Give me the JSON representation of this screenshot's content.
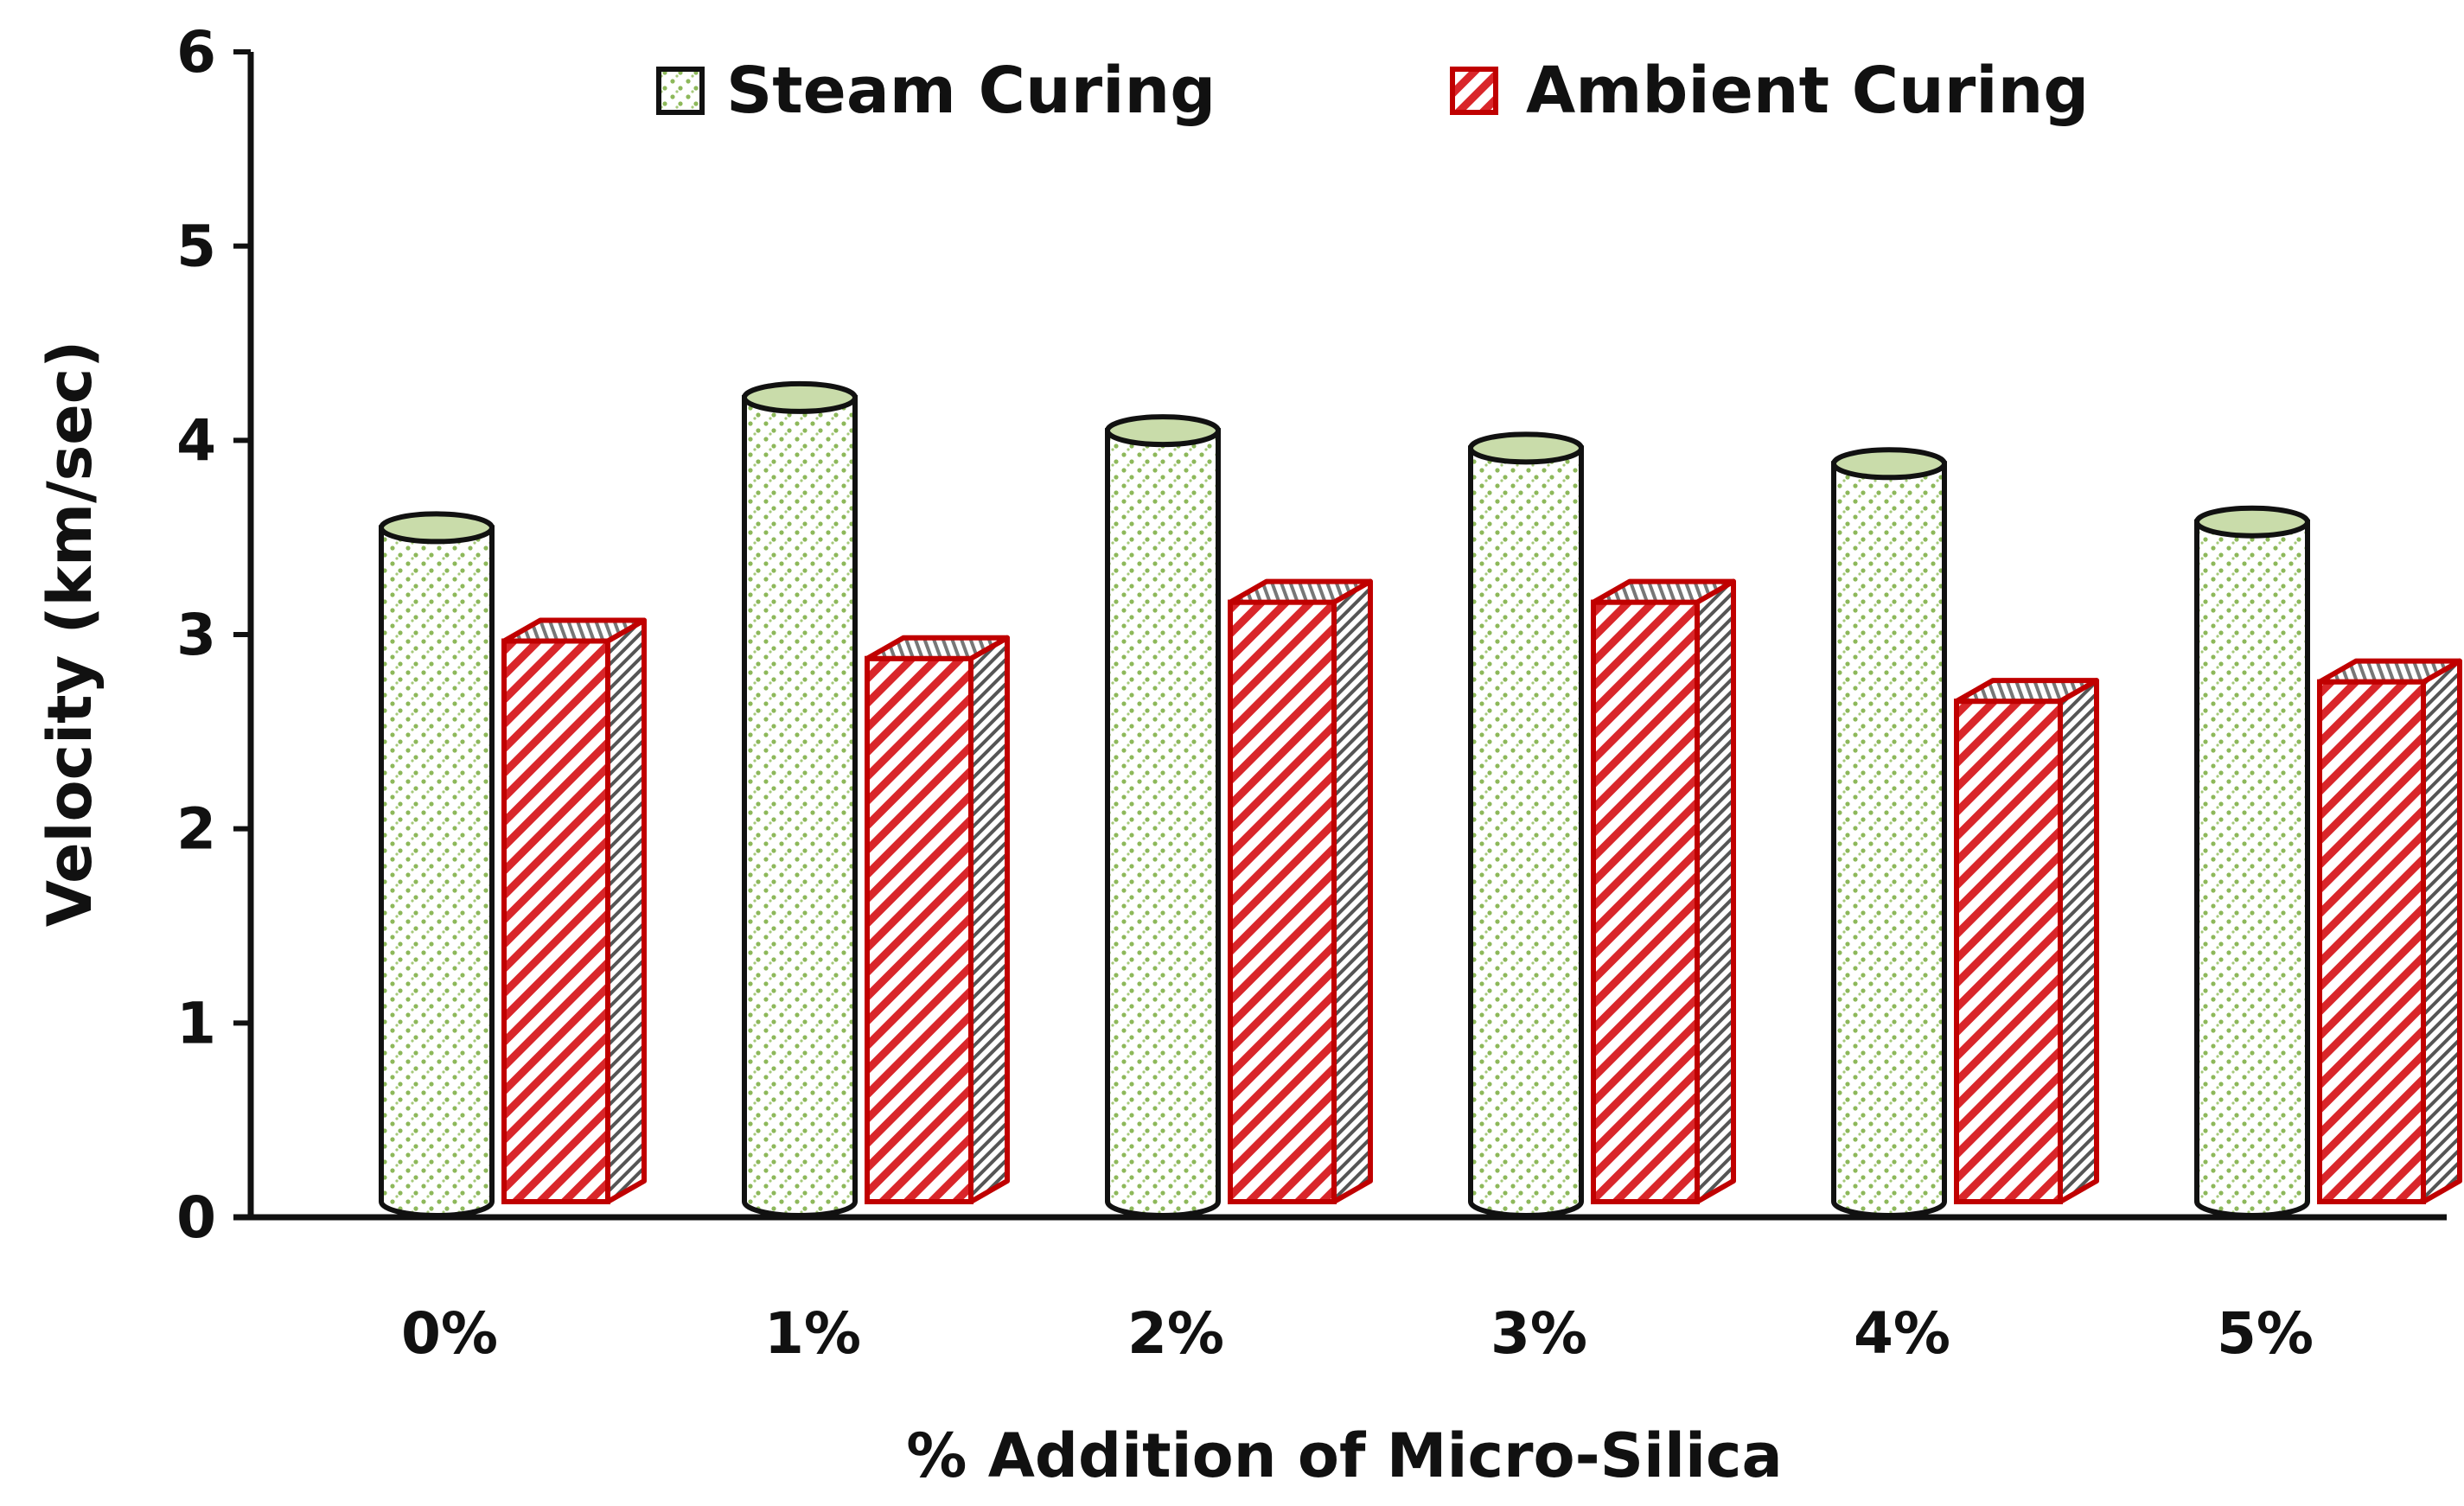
{
  "chart_data": {
    "type": "bar",
    "categories": [
      "0%",
      "1%",
      "2%",
      "3%",
      "4%",
      "5%"
    ],
    "series": [
      {
        "name": "Steam Curing",
        "values": [
          3.55,
          4.22,
          4.05,
          3.96,
          3.88,
          3.58
        ],
        "color": "#8db85a",
        "style": "dotted-cylinder"
      },
      {
        "name": "Ambient Curing",
        "values": [
          3.02,
          2.93,
          3.22,
          3.22,
          2.71,
          2.81
        ],
        "color": "#d9262a",
        "style": "hatched-box"
      }
    ],
    "xlabel": "% Addition of Micro-Silica",
    "ylabel": "Velocity (km/sec)",
    "ylim": [
      0,
      6
    ],
    "yticks": [
      "0",
      "1",
      "2",
      "3",
      "4",
      "5",
      "6"
    ],
    "grid": false,
    "legend": "top"
  }
}
